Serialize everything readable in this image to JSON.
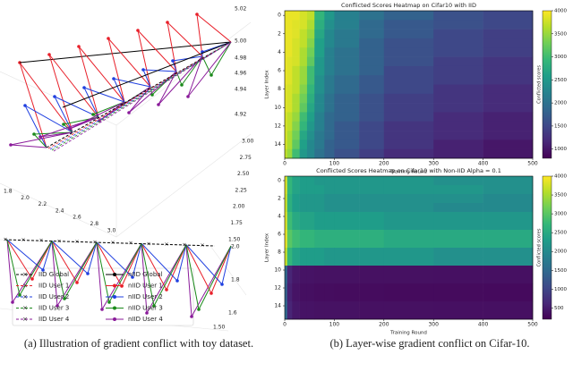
{
  "panel_a": {
    "top_ticks_z": [
      "5.02",
      "5.00",
      "4.98",
      "4.96",
      "4.94",
      "4.92"
    ],
    "top_ticks_y": [
      "3.00",
      "2.75",
      "2.50",
      "2.25",
      "2.00",
      "1.75",
      "1.50"
    ],
    "top_ticks_x": [
      "1.8",
      "2.0",
      "2.2",
      "2.4",
      "2.6",
      "2.8",
      "3.0"
    ],
    "bottom_ticks": [
      "2.0",
      "1.8",
      "1.6",
      "1.50"
    ],
    "legend": [
      "IID Global",
      "IID User 1",
      "IID User 2",
      "IID User 3",
      "IID User 4",
      "nIID Global",
      "nIID User 1",
      "nIID User 2",
      "nIID User 3",
      "nIID User 4"
    ],
    "legend_colors": [
      "#000000",
      "#e8202a",
      "#1f3fe0",
      "#1a8a1a",
      "#8a1a9a"
    ]
  },
  "captions": {
    "a": "(a) Illustration of gradient conflict with toy dataset.",
    "b": "(b) Layer-wise gradient conflict on Cifar-10."
  },
  "chart_data": [
    {
      "type": "heatmap",
      "title": "Conflicted Scores Heatmap on Cifar10 with IID",
      "xlabel": "Training Round",
      "ylabel": "Layer Index",
      "colorbar_label": "Conflicted scores",
      "colormap": "viridis",
      "clim": [
        800,
        4000
      ],
      "cticks": [
        1000,
        1500,
        2000,
        2500,
        3000,
        3500,
        4000
      ],
      "xlim": [
        0,
        500
      ],
      "xticks": [
        0,
        100,
        200,
        300,
        400,
        500
      ],
      "ylim": [
        15.5,
        -0.5
      ],
      "yticks": [
        0,
        2,
        4,
        6,
        8,
        10,
        12,
        14
      ],
      "x_bins": [
        0,
        5,
        15,
        30,
        45,
        60,
        80,
        100,
        150,
        200,
        300,
        400,
        500
      ],
      "values": [
        [
          3900,
          3900,
          3900,
          3800,
          3700,
          2900,
          2500,
          2200,
          2000,
          1800,
          1600,
          1500
        ],
        [
          3900,
          3900,
          3850,
          3800,
          3600,
          2800,
          2400,
          2200,
          1900,
          1700,
          1600,
          1500
        ],
        [
          3900,
          3900,
          3850,
          3700,
          3500,
          2700,
          2300,
          2100,
          1900,
          1700,
          1500,
          1400
        ],
        [
          3900,
          3900,
          3800,
          3700,
          3400,
          2600,
          2300,
          2100,
          1800,
          1600,
          1500,
          1400
        ],
        [
          3900,
          3900,
          3800,
          3600,
          3300,
          2600,
          2200,
          2000,
          1800,
          1600,
          1500,
          1400
        ],
        [
          3900,
          3850,
          3800,
          3600,
          3200,
          2500,
          2200,
          2000,
          1800,
          1600,
          1400,
          1300
        ],
        [
          3900,
          3850,
          3700,
          3500,
          3000,
          2500,
          2200,
          2000,
          1800,
          1500,
          1400,
          1300
        ],
        [
          3900,
          3850,
          3700,
          3500,
          3000,
          2400,
          2100,
          1900,
          1700,
          1500,
          1400,
          1300
        ],
        [
          3850,
          3800,
          3700,
          3400,
          2900,
          2400,
          2100,
          1900,
          1700,
          1500,
          1300,
          1200
        ],
        [
          3850,
          3800,
          3600,
          3300,
          2800,
          2300,
          2000,
          1800,
          1600,
          1400,
          1300,
          1200
        ],
        [
          3850,
          3800,
          3600,
          3200,
          2700,
          2300,
          2000,
          1800,
          1600,
          1400,
          1300,
          1200
        ],
        [
          3800,
          3700,
          3500,
          3000,
          2600,
          2200,
          1900,
          1800,
          1600,
          1400,
          1200,
          1100
        ],
        [
          3800,
          3700,
          3400,
          2900,
          2500,
          2200,
          1900,
          1700,
          1500,
          1300,
          1200,
          1100
        ],
        [
          3800,
          3600,
          3300,
          2700,
          2400,
          2100,
          1900,
          1700,
          1500,
          1300,
          1200,
          1100
        ],
        [
          3800,
          3600,
          3200,
          2600,
          2300,
          2100,
          1800,
          1700,
          1500,
          1300,
          1100,
          1000
        ],
        [
          3700,
          3500,
          3000,
          2500,
          2300,
          2000,
          1800,
          1600,
          1400,
          1200,
          1100,
          1000
        ]
      ]
    },
    {
      "type": "heatmap",
      "title": "Conflicted Scores Heatmap on Cifar10 with Non-IID Alpha = 0.1",
      "xlabel": "Training Round",
      "ylabel": "Layer Index",
      "colorbar_label": "Conflicted scores",
      "colormap": "viridis",
      "clim": [
        200,
        4000
      ],
      "cticks": [
        500,
        1000,
        1500,
        2000,
        2500,
        3000,
        3500,
        4000
      ],
      "xlim": [
        0,
        500
      ],
      "xticks": [
        0,
        100,
        200,
        300,
        400,
        500
      ],
      "ylim": [
        15.5,
        -0.5
      ],
      "yticks": [
        0,
        2,
        4,
        6,
        8,
        10,
        12,
        14
      ],
      "x_bins": [
        0,
        5,
        15,
        30,
        45,
        60,
        80,
        100,
        150,
        200,
        300,
        400,
        500
      ],
      "values": [
        [
          3800,
          2700,
          2400,
          2300,
          2300,
          2200,
          2200,
          2200,
          2200,
          2200,
          2100,
          2100
        ],
        [
          3800,
          2700,
          2400,
          2300,
          2300,
          2300,
          2200,
          2200,
          2200,
          2200,
          2200,
          2100
        ],
        [
          3700,
          2600,
          2300,
          2200,
          2200,
          2200,
          2100,
          2100,
          2100,
          2100,
          2100,
          2000
        ],
        [
          3700,
          2600,
          2300,
          2200,
          2200,
          2200,
          2100,
          2100,
          2100,
          2100,
          2000,
          2000
        ],
        [
          3800,
          2800,
          2500,
          2400,
          2400,
          2300,
          2300,
          2300,
          2300,
          2200,
          2200,
          2200
        ],
        [
          3800,
          2800,
          2500,
          2400,
          2400,
          2300,
          2300,
          2300,
          2300,
          2200,
          2200,
          2200
        ],
        [
          3900,
          3000,
          2800,
          2700,
          2700,
          2600,
          2600,
          2600,
          2600,
          2500,
          2500,
          2500
        ],
        [
          3900,
          3000,
          2800,
          2700,
          2700,
          2600,
          2600,
          2600,
          2600,
          2500,
          2500,
          2500
        ],
        [
          3700,
          2700,
          2400,
          2300,
          2300,
          2300,
          2200,
          2200,
          2200,
          2200,
          2100,
          2100
        ],
        [
          3700,
          2700,
          2400,
          2300,
          2300,
          2300,
          2200,
          2200,
          2200,
          2200,
          2100,
          2100
        ],
        [
          1500,
          600,
          450,
          400,
          400,
          380,
          380,
          380,
          370,
          370,
          360,
          360
        ],
        [
          1500,
          600,
          450,
          400,
          400,
          380,
          380,
          380,
          370,
          370,
          360,
          360
        ],
        [
          1400,
          550,
          400,
          350,
          350,
          330,
          330,
          320,
          320,
          310,
          310,
          300
        ],
        [
          1400,
          550,
          400,
          350,
          350,
          330,
          330,
          320,
          320,
          310,
          310,
          300
        ],
        [
          1500,
          600,
          450,
          400,
          400,
          380,
          380,
          380,
          370,
          370,
          360,
          360
        ],
        [
          1500,
          600,
          450,
          400,
          400,
          380,
          380,
          380,
          370,
          370,
          360,
          360
        ]
      ]
    }
  ]
}
